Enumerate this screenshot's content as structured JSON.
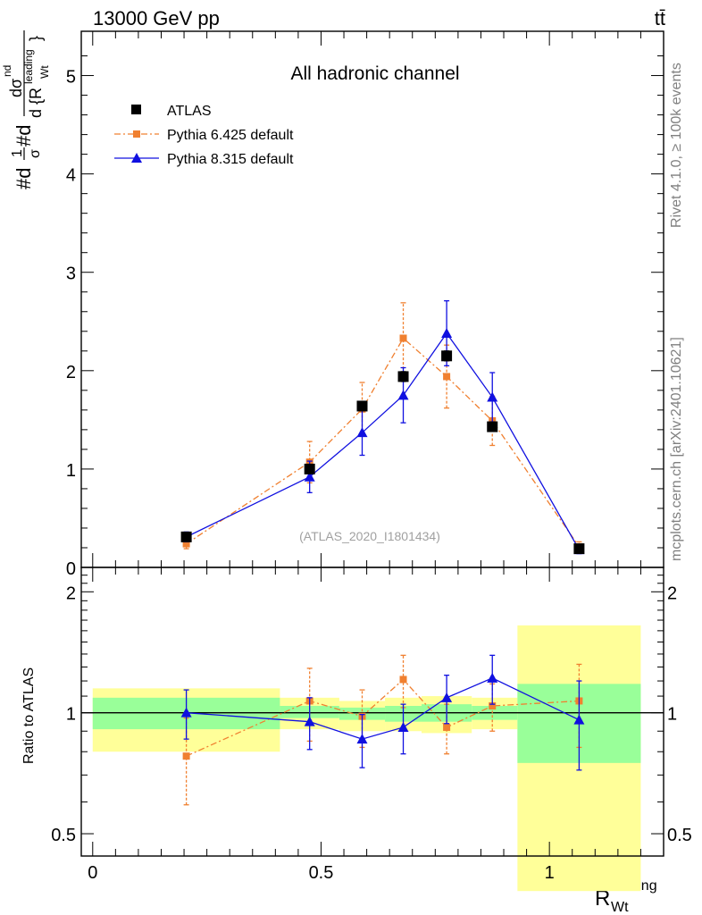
{
  "header": {
    "left": "13000 GeV pp",
    "right": "tt̄"
  },
  "side_labels": {
    "rivet": "Rivet 4.1.0, ≥ 100k events",
    "mcplots": "mcplots.cern.ch [arXiv:2401.10621]"
  },
  "colors": {
    "atlas": "#000000",
    "pythia6": "#f08030",
    "pythia8": "#1010e0",
    "band_inner": "#99ff99",
    "band_outer": "#ffff99"
  },
  "chart_data": [
    {
      "type": "scatter",
      "panel": "main",
      "title": "All hadronic channel",
      "watermark": "(ATLAS_2020_I1801434)",
      "ylabel": "#dσ/#d dσ/d{R_Wt^leading}",
      "ylabel_main": "#d",
      "ylabel_frac_num": "1",
      "ylabel_frac_den": "σ",
      "ylabel_mid": "#d",
      "ylabel_d_sigma": "dσ",
      "ylabel_d": "d {R",
      "ylabel_sub": "Wt",
      "ylabel_sup": "leading",
      "ylabel_close": "}",
      "ylabel_sup_top": "nd",
      "xlabel": "R",
      "xlabel_sub": "Wt",
      "xlabel_sup": "leading",
      "xlim": [
        -0.025,
        1.25
      ],
      "ylim": [
        0,
        5.45
      ],
      "yticks": [
        0,
        1,
        2,
        3,
        4,
        5
      ],
      "ytick_labels": [
        "0",
        "1",
        "2",
        "3",
        "4",
        "5"
      ],
      "legend_position": "top-left",
      "series": [
        {
          "name": "ATLAS",
          "marker": "square",
          "x": [
            0.205,
            0.475,
            0.59,
            0.68,
            0.775,
            0.875,
            1.065
          ],
          "xerr": [
            0,
            0,
            0,
            0,
            0,
            0,
            0
          ],
          "y": [
            0.31,
            1.0,
            1.64,
            1.94,
            2.15,
            1.43,
            0.19
          ],
          "yerr_lo": [
            0.04,
            0.03,
            0.04,
            0.05,
            0.05,
            0.04,
            0.02
          ],
          "yerr_hi": [
            0.04,
            0.03,
            0.04,
            0.05,
            0.05,
            0.04,
            0.02
          ]
        },
        {
          "name": "Pythia 6.425 default",
          "marker": "small-square",
          "line": "dash-dot",
          "x": [
            0.205,
            0.475,
            0.59,
            0.68,
            0.775,
            0.875,
            1.065
          ],
          "y": [
            0.24,
            1.07,
            1.61,
            2.33,
            1.94,
            1.49,
            0.21
          ],
          "yerr_lo": [
            0.05,
            0.21,
            0.27,
            0.36,
            0.32,
            0.25,
            0.05
          ],
          "yerr_hi": [
            0.05,
            0.21,
            0.27,
            0.36,
            0.32,
            0.25,
            0.05
          ]
        },
        {
          "name": "Pythia 8.315 default",
          "marker": "triangle",
          "line": "solid",
          "x": [
            0.205,
            0.475,
            0.59,
            0.68,
            0.775,
            0.875,
            1.065
          ],
          "y": [
            0.31,
            0.92,
            1.37,
            1.75,
            2.38,
            1.73,
            0.18
          ],
          "yerr_lo": [
            0.05,
            0.16,
            0.23,
            0.28,
            0.33,
            0.25,
            0.04
          ],
          "yerr_hi": [
            0.05,
            0.16,
            0.23,
            0.28,
            0.33,
            0.25,
            0.04
          ]
        }
      ]
    },
    {
      "type": "scatter",
      "panel": "ratio",
      "ylabel": "Ratio to ATLAS",
      "ylim": [
        0.44,
        2.3
      ],
      "yscale": "log",
      "yticks": [
        0.5,
        1,
        2
      ],
      "ytick_labels": [
        "0.5",
        "1",
        "2"
      ],
      "xticks": [
        0,
        0.5,
        1
      ],
      "xtick_labels": [
        "0",
        "0.5",
        "1"
      ],
      "reference_line": 1,
      "bins": [
        {
          "x_lo": 0.0,
          "x_hi": 0.41,
          "inner": [
            0.91,
            1.09
          ],
          "outer": [
            0.8,
            1.15
          ]
        },
        {
          "x_lo": 0.41,
          "x_hi": 0.54,
          "inner": [
            0.97,
            1.04
          ],
          "outer": [
            0.91,
            1.09
          ]
        },
        {
          "x_lo": 0.54,
          "x_hi": 0.64,
          "inner": [
            0.96,
            1.03
          ],
          "outer": [
            0.9,
            1.07
          ]
        },
        {
          "x_lo": 0.64,
          "x_hi": 0.72,
          "inner": [
            0.95,
            1.04
          ],
          "outer": [
            0.9,
            1.09
          ]
        },
        {
          "x_lo": 0.72,
          "x_hi": 0.83,
          "inner": [
            0.95,
            1.05
          ],
          "outer": [
            0.89,
            1.1
          ]
        },
        {
          "x_lo": 0.83,
          "x_hi": 0.93,
          "inner": [
            0.96,
            1.04
          ],
          "outer": [
            0.91,
            1.09
          ]
        },
        {
          "x_lo": 0.93,
          "x_hi": 1.2,
          "inner": [
            0.75,
            1.18
          ],
          "outer": [
            0.36,
            1.65
          ]
        }
      ],
      "series": [
        {
          "name": "Pythia 6.425 default",
          "x": [
            0.205,
            0.475,
            0.59,
            0.68,
            0.775,
            0.875,
            1.065
          ],
          "y": [
            0.78,
            1.07,
            0.98,
            1.21,
            0.92,
            1.04,
            1.07
          ],
          "yerr_lo": [
            0.19,
            0.22,
            0.16,
            0.18,
            0.13,
            0.14,
            0.25
          ],
          "yerr_hi": [
            0.19,
            0.22,
            0.16,
            0.18,
            0.13,
            0.14,
            0.25
          ]
        },
        {
          "name": "Pythia 8.315 default",
          "x": [
            0.205,
            0.475,
            0.59,
            0.68,
            0.775,
            0.875,
            1.065
          ],
          "y": [
            1.0,
            0.95,
            0.86,
            0.92,
            1.09,
            1.22,
            0.96
          ],
          "yerr_lo": [
            0.14,
            0.14,
            0.13,
            0.13,
            0.15,
            0.17,
            0.24
          ],
          "yerr_hi": [
            0.14,
            0.14,
            0.13,
            0.13,
            0.15,
            0.17,
            0.24
          ]
        }
      ]
    }
  ]
}
